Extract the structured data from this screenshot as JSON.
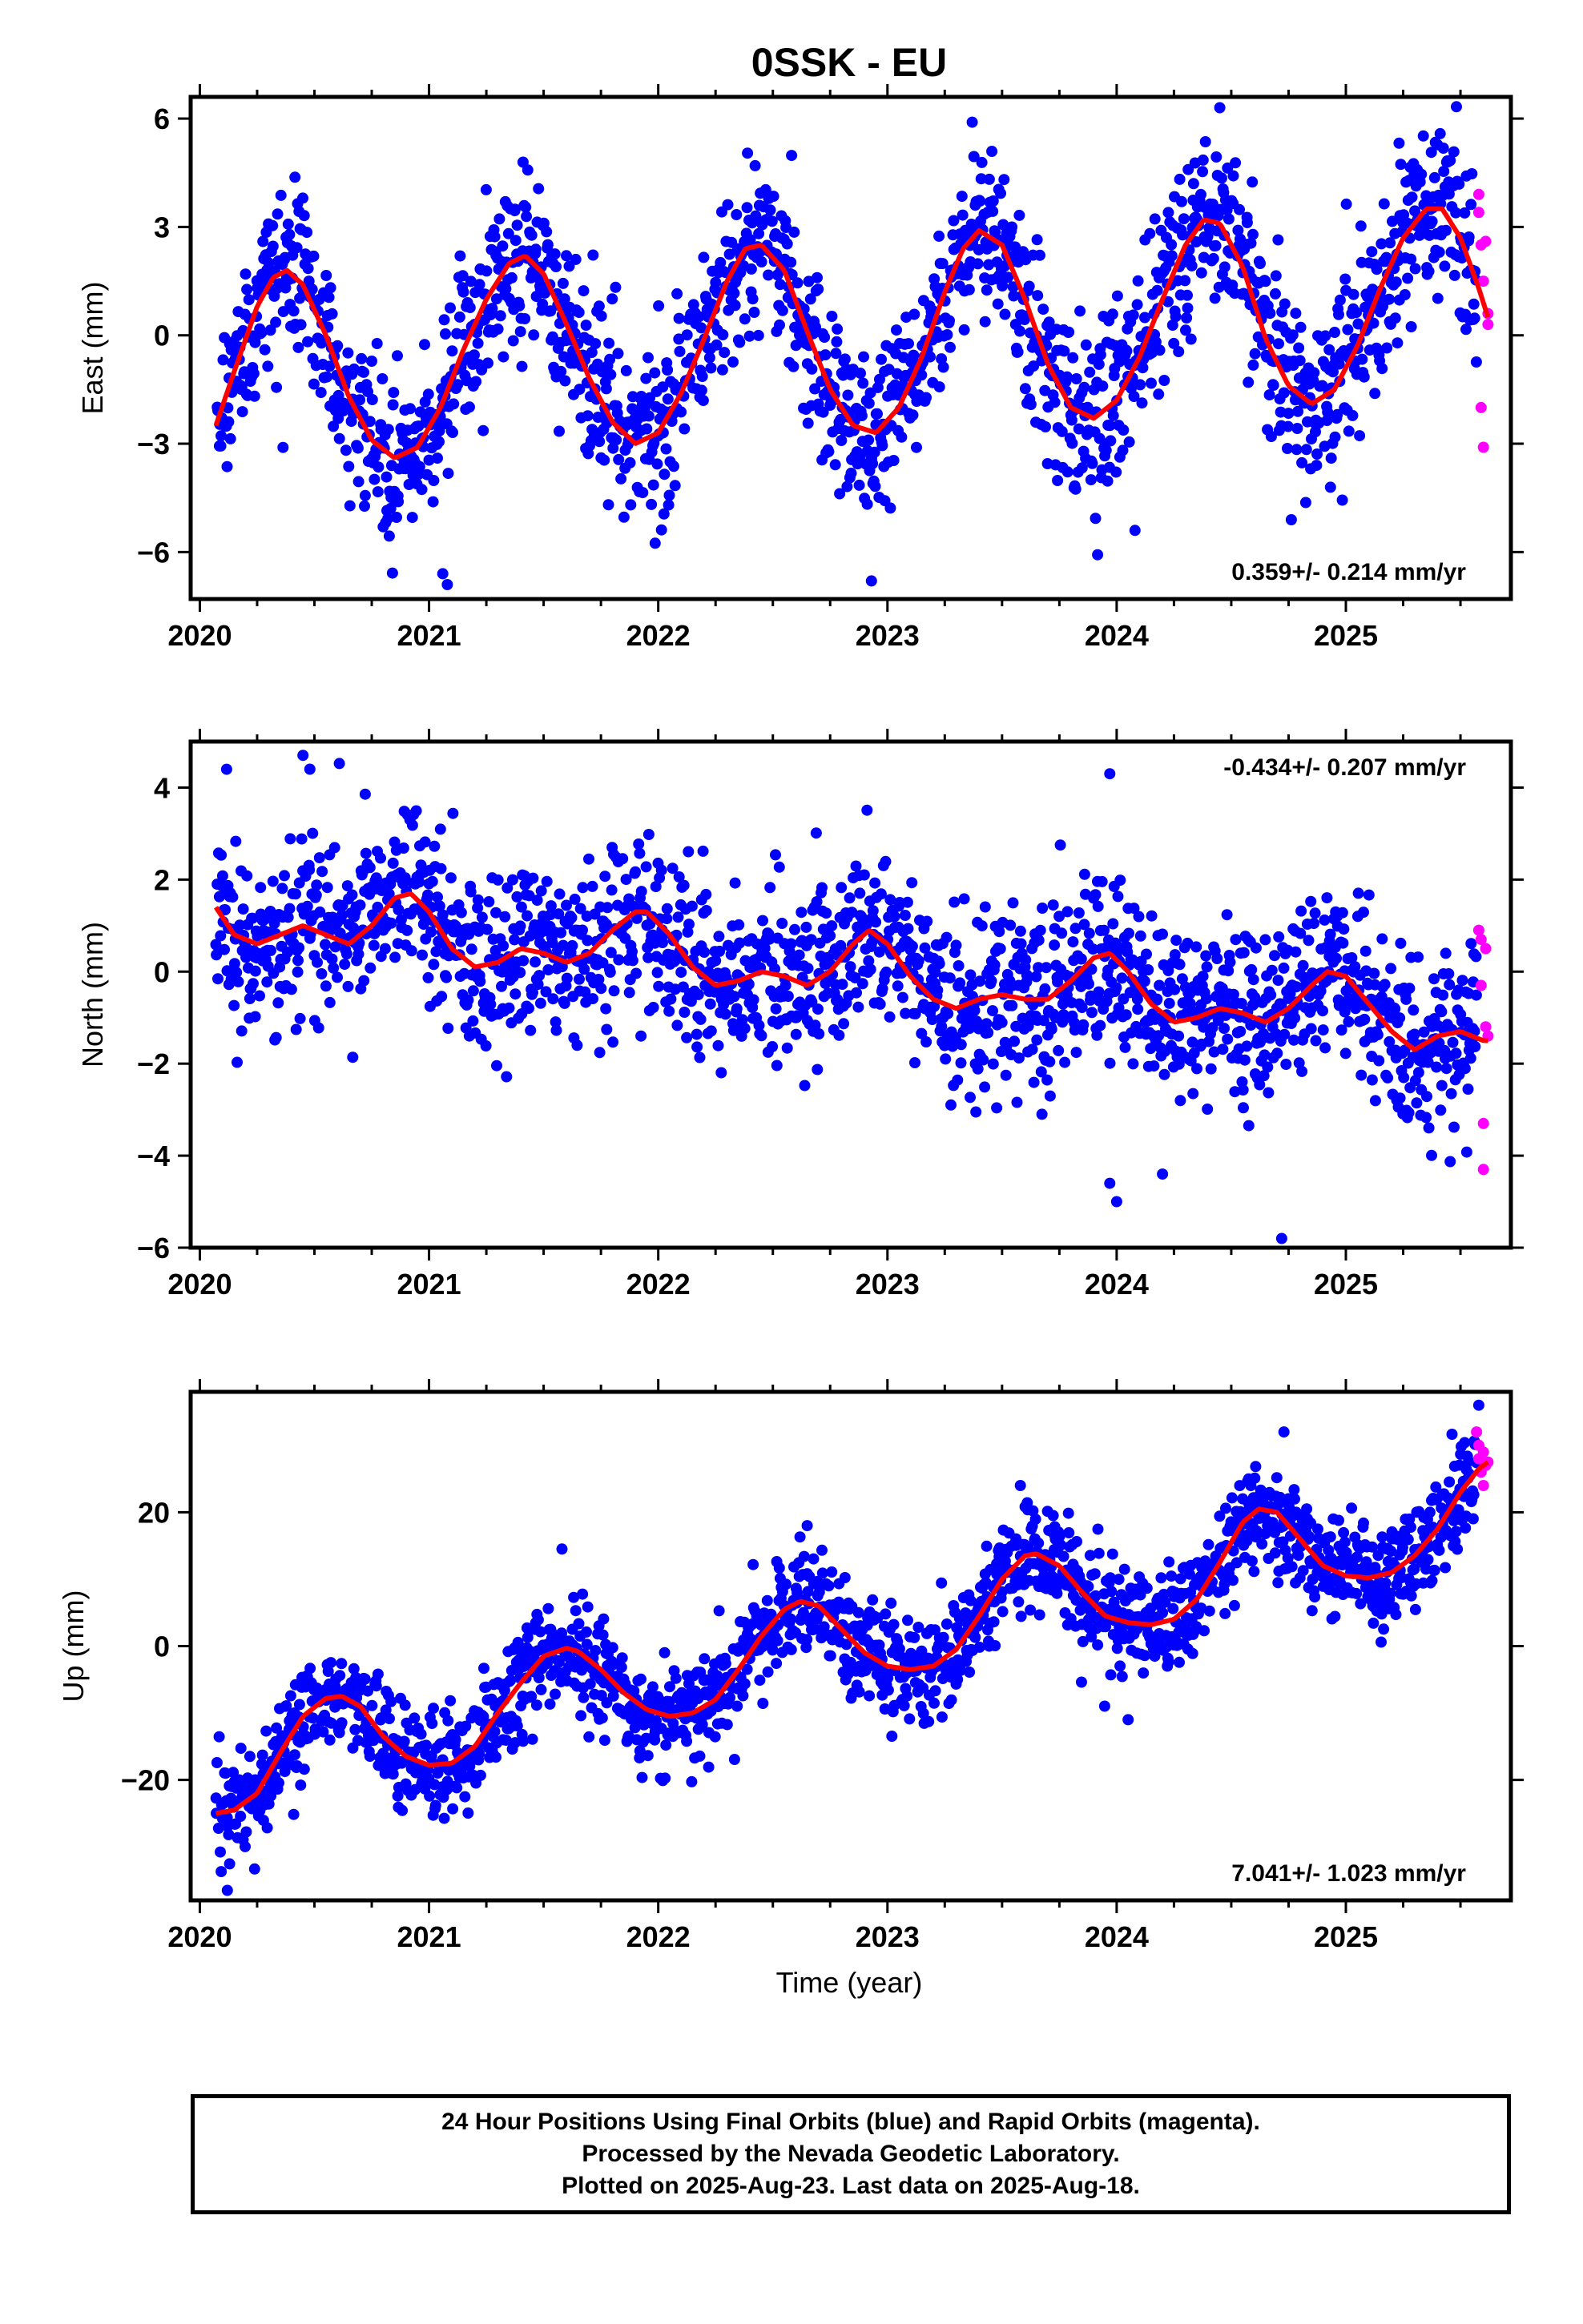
{
  "title": "0SSK - EU",
  "xlabel": "Time (year)",
  "colors": {
    "final": "#0000ff",
    "rapid": "#ff00ff",
    "model": "#ff0000",
    "frame": "#000000"
  },
  "footer": {
    "line1": "24 Hour Positions Using Final Orbits (blue) and Rapid Orbits (magenta).",
    "line2": "Processed by the Nevada Geodetic Laboratory.",
    "line3": "Plotted on 2025-Aug-23. Last data on 2025-Aug-18."
  },
  "chart_data": [
    {
      "type": "scatter",
      "ylabel": "East (mm)",
      "xlim": [
        2019.96,
        2025.72
      ],
      "ylim": [
        -7.3,
        6.6
      ],
      "yticks": [
        -6,
        -3,
        0,
        3,
        6
      ],
      "yticklabels": [
        "−6",
        "−3",
        "0",
        "3",
        "6"
      ],
      "xticks": [
        2020,
        2021,
        2022,
        2023,
        2024,
        2025
      ],
      "xticklabels": [
        "2020",
        "2021",
        "2022",
        "2023",
        "2024",
        "2025"
      ],
      "rate_label": "0.359+/- 0.214 mm/yr",
      "rate_position": "bottom-right",
      "model": {
        "x": [
          2020.07,
          2020.15,
          2020.25,
          2020.32,
          2020.38,
          2020.45,
          2020.55,
          2020.65,
          2020.75,
          2020.85,
          2020.95,
          2021.05,
          2021.15,
          2021.25,
          2021.35,
          2021.42,
          2021.5,
          2021.6,
          2021.7,
          2021.8,
          2021.9,
          2022.0,
          2022.1,
          2022.2,
          2022.3,
          2022.38,
          2022.45,
          2022.55,
          2022.65,
          2022.75,
          2022.85,
          2022.95,
          2023.05,
          2023.15,
          2023.25,
          2023.33,
          2023.4,
          2023.5,
          2023.6,
          2023.7,
          2023.8,
          2023.9,
          2024.0,
          2024.1,
          2024.2,
          2024.3,
          2024.38,
          2024.45,
          2024.55,
          2024.65,
          2024.75,
          2024.85,
          2024.95,
          2025.05,
          2025.15,
          2025.25,
          2025.35,
          2025.42,
          2025.5,
          2025.58,
          2025.62
        ],
        "y": [
          -2.5,
          -1.0,
          0.8,
          1.6,
          1.8,
          1.4,
          0.0,
          -1.7,
          -2.9,
          -3.4,
          -3.1,
          -2.0,
          -0.4,
          1.0,
          2.0,
          2.2,
          1.7,
          0.3,
          -1.2,
          -2.4,
          -3.0,
          -2.7,
          -1.6,
          -0.1,
          1.5,
          2.4,
          2.5,
          1.8,
          0.1,
          -1.5,
          -2.5,
          -2.7,
          -2.0,
          -0.6,
          1.2,
          2.4,
          2.9,
          2.5,
          1.0,
          -0.8,
          -2.0,
          -2.3,
          -1.8,
          -0.6,
          1.0,
          2.5,
          3.2,
          3.1,
          1.9,
          -0.1,
          -1.4,
          -1.9,
          -1.5,
          -0.3,
          1.3,
          2.7,
          3.5,
          3.5,
          2.7,
          1.3,
          0.5
        ]
      },
      "noise_sd": 1.2,
      "outliers": [
        [
          2021.08,
          -6.9
        ],
        [
          2022.93,
          -6.8
        ],
        [
          2023.37,
          5.9
        ],
        [
          2024.45,
          6.3
        ],
        [
          2024.08,
          -5.4
        ],
        [
          2020.8,
          -5.3
        ],
        [
          2021.06,
          -6.6
        ]
      ],
      "rapid": {
        "x": [
          2025.58,
          2025.58,
          2025.59,
          2025.59,
          2025.6,
          2025.6,
          2025.61,
          2025.62,
          2025.62
        ],
        "y": [
          3.9,
          3.4,
          2.5,
          -2.0,
          -3.1,
          1.5,
          2.6,
          0.6,
          0.3
        ]
      }
    },
    {
      "type": "scatter",
      "ylabel": "North (mm)",
      "xlim": [
        2019.96,
        2025.72
      ],
      "ylim": [
        -6.0,
        5.0
      ],
      "yticks": [
        -6,
        -4,
        -2,
        0,
        2,
        4
      ],
      "yticklabels": [
        "−6",
        "−4",
        "−2",
        "0",
        "2",
        "4"
      ],
      "xticks": [
        2020,
        2021,
        2022,
        2023,
        2024,
        2025
      ],
      "xticklabels": [
        "2020",
        "2021",
        "2022",
        "2023",
        "2024",
        "2025"
      ],
      "rate_label": "-0.434+/- 0.207 mm/yr",
      "rate_position": "top-right",
      "model": {
        "x": [
          2020.07,
          2020.15,
          2020.25,
          2020.35,
          2020.45,
          2020.55,
          2020.65,
          2020.75,
          2020.85,
          2020.92,
          2021.0,
          2021.1,
          2021.2,
          2021.3,
          2021.4,
          2021.5,
          2021.6,
          2021.7,
          2021.8,
          2021.9,
          2021.95,
          2022.05,
          2022.15,
          2022.25,
          2022.35,
          2022.45,
          2022.55,
          2022.65,
          2022.75,
          2022.85,
          2022.92,
          2023.0,
          2023.1,
          2023.2,
          2023.3,
          2023.4,
          2023.5,
          2023.6,
          2023.7,
          2023.8,
          2023.9,
          2023.97,
          2024.05,
          2024.15,
          2024.25,
          2024.35,
          2024.45,
          2024.55,
          2024.65,
          2024.75,
          2024.85,
          2024.92,
          2025.0,
          2025.1,
          2025.2,
          2025.3,
          2025.4,
          2025.5,
          2025.6,
          2025.62
        ],
        "y": [
          1.4,
          0.8,
          0.6,
          0.8,
          1.0,
          0.8,
          0.6,
          1.0,
          1.6,
          1.7,
          1.3,
          0.5,
          0.1,
          0.2,
          0.5,
          0.4,
          0.2,
          0.4,
          0.9,
          1.3,
          1.3,
          0.8,
          0.1,
          -0.3,
          -0.2,
          0.0,
          -0.1,
          -0.3,
          0.0,
          0.6,
          0.9,
          0.6,
          -0.1,
          -0.6,
          -0.8,
          -0.6,
          -0.5,
          -0.6,
          -0.6,
          -0.2,
          0.3,
          0.4,
          0.0,
          -0.7,
          -1.1,
          -1.0,
          -0.8,
          -0.9,
          -1.1,
          -0.8,
          -0.3,
          0.0,
          -0.1,
          -0.7,
          -1.3,
          -1.7,
          -1.4,
          -1.3,
          -1.5,
          -1.5
        ]
      },
      "noise_sd": 0.95,
      "outliers": [
        [
          2020.45,
          4.7
        ],
        [
          2020.48,
          4.4
        ],
        [
          2023.97,
          4.3
        ],
        [
          2024.0,
          -5.0
        ],
        [
          2024.72,
          -5.8
        ],
        [
          2024.2,
          -4.4
        ],
        [
          2023.97,
          -4.6
        ]
      ],
      "rapid": {
        "x": [
          2025.58,
          2025.59,
          2025.59,
          2025.6,
          2025.6,
          2025.61,
          2025.61,
          2025.62
        ],
        "y": [
          0.9,
          0.7,
          -0.3,
          -3.3,
          -4.3,
          0.5,
          -1.2,
          -1.4
        ]
      }
    },
    {
      "type": "scatter",
      "ylabel": "Up (mm)",
      "xlim": [
        2019.96,
        2025.72
      ],
      "ylim": [
        -38.0,
        38.0
      ],
      "yticks": [
        -20,
        0,
        20
      ],
      "yticklabels": [
        "−20",
        "0",
        "20"
      ],
      "xticks": [
        2020,
        2021,
        2022,
        2023,
        2024,
        2025
      ],
      "xticklabels": [
        "2020",
        "2021",
        "2022",
        "2023",
        "2024",
        "2025"
      ],
      "rate_label": "7.041+/- 1.023 mm/yr",
      "rate_position": "bottom-right",
      "model": {
        "x": [
          2020.07,
          2020.15,
          2020.25,
          2020.35,
          2020.45,
          2020.55,
          2020.62,
          2020.7,
          2020.8,
          2020.9,
          2021.0,
          2021.1,
          2021.2,
          2021.3,
          2021.4,
          2021.5,
          2021.6,
          2021.65,
          2021.75,
          2021.85,
          2021.95,
          2022.05,
          2022.15,
          2022.25,
          2022.35,
          2022.45,
          2022.55,
          2022.62,
          2022.7,
          2022.8,
          2022.9,
          2023.0,
          2023.1,
          2023.2,
          2023.3,
          2023.4,
          2023.5,
          2023.6,
          2023.65,
          2023.75,
          2023.85,
          2023.95,
          2024.05,
          2024.15,
          2024.25,
          2024.35,
          2024.45,
          2024.55,
          2024.62,
          2024.7,
          2024.8,
          2024.9,
          2025.0,
          2025.1,
          2025.2,
          2025.3,
          2025.4,
          2025.5,
          2025.58,
          2025.62
        ],
        "y": [
          -25.0,
          -24.5,
          -22.0,
          -16.0,
          -10.5,
          -7.8,
          -7.5,
          -9.0,
          -13.5,
          -16.5,
          -17.8,
          -17.5,
          -15.0,
          -10.0,
          -5.5,
          -1.5,
          -0.3,
          -0.8,
          -3.5,
          -7.0,
          -9.5,
          -10.5,
          -10.0,
          -8.0,
          -3.5,
          1.5,
          5.5,
          6.7,
          6.0,
          2.5,
          -1.0,
          -3.0,
          -3.5,
          -3.0,
          -0.5,
          4.5,
          10.0,
          13.5,
          13.8,
          12.0,
          8.0,
          4.5,
          3.5,
          3.2,
          4.0,
          7.0,
          12.5,
          18.5,
          20.5,
          20.0,
          16.0,
          12.0,
          10.5,
          10.2,
          11.0,
          13.5,
          17.5,
          23.0,
          26.5,
          27.5
        ]
      },
      "noise_sd": 4.0,
      "outliers": [
        [
          2020.12,
          -36.5
        ],
        [
          2021.58,
          14.5
        ],
        [
          2022.65,
          18.0
        ],
        [
          2023.58,
          24.0
        ],
        [
          2024.73,
          32.0
        ],
        [
          2025.58,
          36.0
        ],
        [
          2024.05,
          -11.0
        ]
      ],
      "rapid": {
        "x": [
          2025.57,
          2025.58,
          2025.58,
          2025.59,
          2025.6,
          2025.6,
          2025.61,
          2025.62
        ],
        "y": [
          32.0,
          30.0,
          28.0,
          26.0,
          24.0,
          29.0,
          27.0,
          27.5
        ]
      }
    }
  ]
}
